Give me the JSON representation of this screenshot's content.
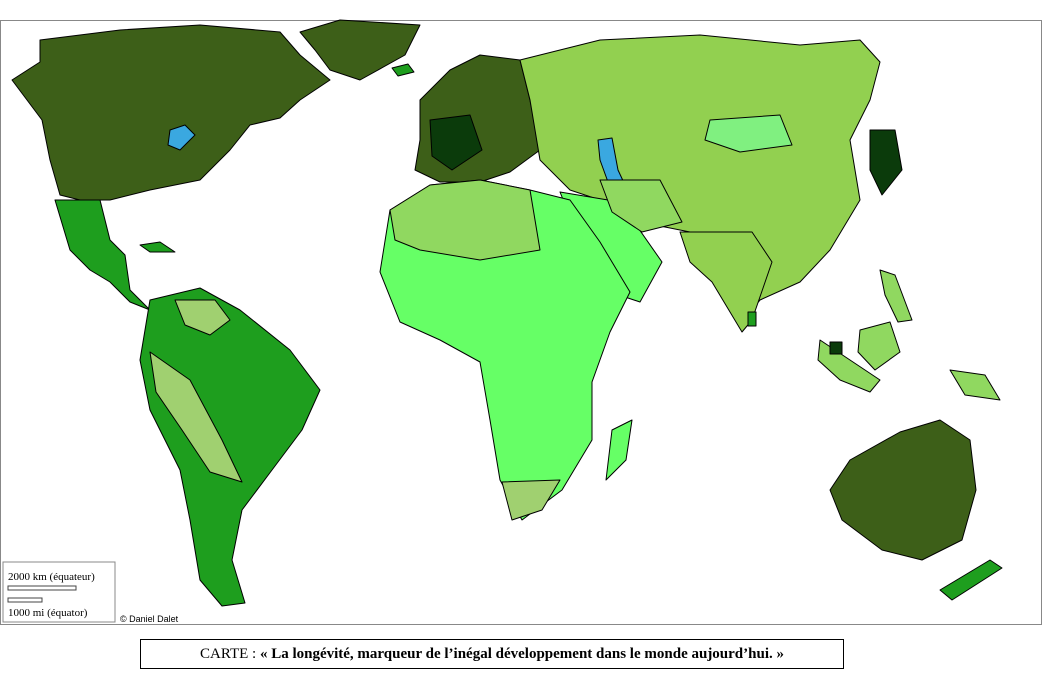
{
  "map": {
    "scale_km": "2000 km (équateur)",
    "scale_mi": "1000 mi (équator)",
    "credit": "© Daniel Dalet"
  },
  "caption": {
    "prefix": "CARTE :",
    "title": "« La longévité, marqueur de l’inégal développement dans le monde aujourd’hui. »"
  }
}
